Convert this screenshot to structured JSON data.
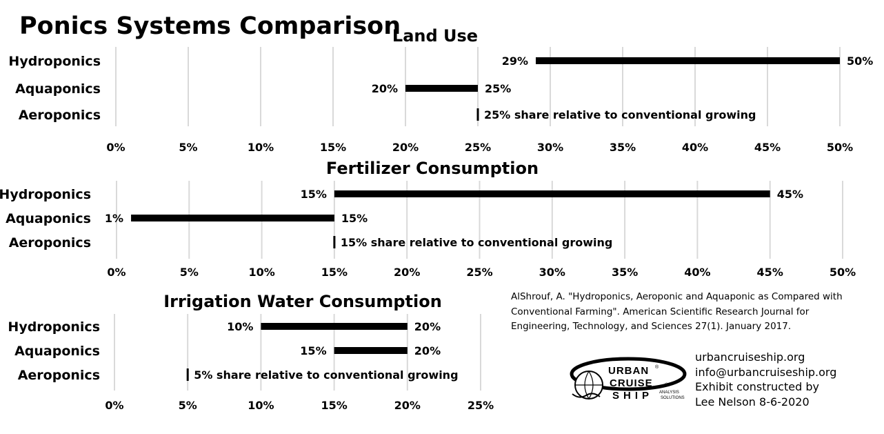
{
  "main_title": "Ponics Systems Comparison",
  "chart_data": [
    {
      "type": "bar",
      "title": "Land Use",
      "categories": [
        "Hydroponics",
        "Aquaponics",
        "Aeroponics"
      ],
      "ranges": [
        [
          29,
          50
        ],
        [
          20,
          25
        ],
        [
          25,
          25
        ]
      ],
      "range_labels": [
        [
          "29%",
          "50%"
        ],
        [
          "20%",
          "25%"
        ],
        [
          "",
          ""
        ]
      ],
      "aeroponics_annotation": "25% share relative to conventional growing",
      "xlim": [
        0,
        50
      ],
      "x_ticks": [
        "0%",
        "5%",
        "10%",
        "15%",
        "20%",
        "25%",
        "30%",
        "35%",
        "40%",
        "45%",
        "50%"
      ],
      "grid": true
    },
    {
      "type": "bar",
      "title": "Fertilizer Consumption",
      "categories": [
        "Hydroponics",
        "Aquaponics",
        "Aeroponics"
      ],
      "ranges": [
        [
          15,
          45
        ],
        [
          1,
          15
        ],
        [
          15,
          15
        ]
      ],
      "range_labels": [
        [
          "15%",
          "45%"
        ],
        [
          "1%",
          "15%"
        ],
        [
          "",
          ""
        ]
      ],
      "aeroponics_annotation": "15% share relative to conventional growing",
      "xlim": [
        0,
        50
      ],
      "x_ticks": [
        "0%",
        "5%",
        "10%",
        "15%",
        "20%",
        "25%",
        "30%",
        "35%",
        "40%",
        "45%",
        "50%"
      ],
      "grid": true
    },
    {
      "type": "bar",
      "title": "Irrigation Water Consumption",
      "categories": [
        "Hydroponics",
        "Aquaponics",
        "Aeroponics"
      ],
      "ranges": [
        [
          10,
          20
        ],
        [
          15,
          20
        ],
        [
          5,
          5
        ]
      ],
      "range_labels": [
        [
          "10%",
          "20%"
        ],
        [
          "15%",
          "20%"
        ],
        [
          "",
          ""
        ]
      ],
      "aeroponics_annotation": "5% share relative to conventional growing",
      "xlim": [
        0,
        25
      ],
      "x_ticks": [
        "0%",
        "5%",
        "10%",
        "15%",
        "20%",
        "25%"
      ],
      "grid": true
    }
  ],
  "citation": "AlShrouf, A. \"Hydroponics, Aeroponic and Aquaponic as Compared with Conventional Farming\". American Scientific Research Journal for Engineering, Technology, and Sciences 27(1). January 2017.",
  "contact": {
    "website": "urbancruiseship.org",
    "email": "info@urbancruiseship.org",
    "credit_line1": "Exhibit constructed by",
    "credit_line2": "Lee Nelson 8-6-2020"
  },
  "logo": {
    "line1": "URBAN",
    "line2": "CRUISE",
    "line3": "SHIP",
    "tagline1": "ANALYSIS",
    "tagline2": "SOLUTIONS",
    "mark": "®"
  },
  "colors": {
    "bar": "#000000",
    "grid": "#d9d9d9",
    "text": "#000000"
  }
}
